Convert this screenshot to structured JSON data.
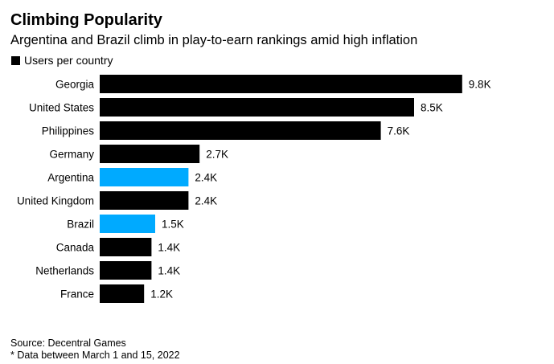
{
  "chart_data": {
    "type": "bar",
    "orientation": "horizontal",
    "title": "Climbing Popularity",
    "subtitle": "Argentina and Brazil climb in play-to-earn rankings amid high inflation",
    "legend": [
      {
        "name": "Users per country",
        "color": "#000000"
      }
    ],
    "legend_placement": "top-left",
    "categories": [
      "Georgia",
      "United States",
      "Philippines",
      "Germany",
      "Argentina",
      "United Kingdom",
      "Brazil",
      "Canada",
      "Netherlands",
      "France"
    ],
    "values": [
      9.8,
      8.5,
      7.6,
      2.7,
      2.4,
      2.4,
      1.5,
      1.4,
      1.4,
      1.2
    ],
    "data_labels": [
      "9.8K",
      "8.5K",
      "7.6K",
      "2.7K",
      "2.4K",
      "2.4K",
      "1.5K",
      "1.4K",
      "1.4K",
      "1.2K"
    ],
    "highlighted": [
      "Argentina",
      "Brazil"
    ],
    "unit": "thousand users",
    "grid": false,
    "colors": {
      "default": "#000000",
      "highlight": "#00aaff"
    }
  },
  "footer": {
    "source": "Source: Decentral Games",
    "note": "* Data between March 1 and 15, 2022"
  }
}
